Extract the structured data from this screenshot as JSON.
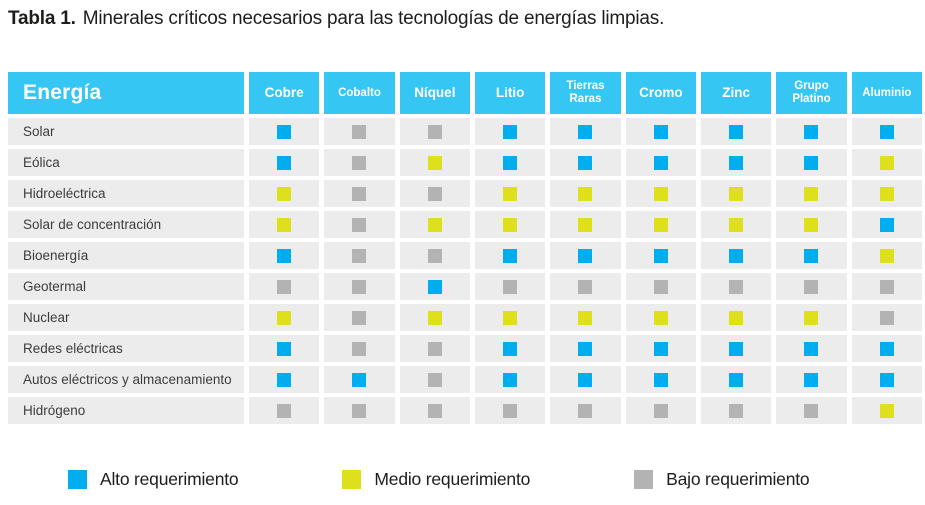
{
  "title": {
    "label": "Tabla 1.",
    "text": "Minerales críticos necesarios para las tecnologías de energías limpias."
  },
  "table": {
    "energy_header": "Energía",
    "mineral_headers": [
      "Cobre",
      "Cobalto",
      "Níquel",
      "Litio",
      "Tierras Raras",
      "Cromo",
      "Zinc",
      "Grupo Platino",
      "Aluminio"
    ],
    "rows": [
      {
        "energy": "Solar",
        "levels": [
          "alto",
          "bajo",
          "bajo",
          "alto",
          "alto",
          "alto",
          "alto",
          "alto",
          "alto"
        ]
      },
      {
        "energy": "Eólica",
        "levels": [
          "alto",
          "bajo",
          "medio",
          "alto",
          "alto",
          "alto",
          "alto",
          "alto",
          "medio"
        ]
      },
      {
        "energy": "Hidroeléctrica",
        "levels": [
          "medio",
          "bajo",
          "bajo",
          "medio",
          "medio",
          "medio",
          "medio",
          "medio",
          "medio"
        ]
      },
      {
        "energy": "Solar de concentración",
        "levels": [
          "medio",
          "bajo",
          "medio",
          "medio",
          "medio",
          "medio",
          "medio",
          "medio",
          "alto"
        ]
      },
      {
        "energy": "Bioenergía",
        "levels": [
          "alto",
          "bajo",
          "bajo",
          "alto",
          "alto",
          "alto",
          "alto",
          "alto",
          "medio"
        ]
      },
      {
        "energy": "Geotermal",
        "levels": [
          "bajo",
          "bajo",
          "alto",
          "bajo",
          "bajo",
          "bajo",
          "bajo",
          "bajo",
          "bajo"
        ]
      },
      {
        "energy": "Nuclear",
        "levels": [
          "medio",
          "bajo",
          "medio",
          "medio",
          "medio",
          "medio",
          "medio",
          "medio",
          "bajo"
        ]
      },
      {
        "energy": "Redes eléctricas",
        "levels": [
          "alto",
          "bajo",
          "bajo",
          "alto",
          "alto",
          "alto",
          "alto",
          "alto",
          "alto"
        ]
      },
      {
        "energy": "Autos eléctricos y almacenamiento",
        "levels": [
          "alto",
          "alto",
          "bajo",
          "alto",
          "alto",
          "alto",
          "alto",
          "alto",
          "alto"
        ]
      },
      {
        "energy": "Hidrógeno",
        "levels": [
          "bajo",
          "bajo",
          "bajo",
          "bajo",
          "bajo",
          "bajo",
          "bajo",
          "bajo",
          "medio"
        ]
      }
    ]
  },
  "legend": {
    "items": [
      {
        "level": "alto",
        "label": "Alto requerimiento"
      },
      {
        "level": "medio",
        "label": "Medio requerimiento"
      },
      {
        "level": "bajo",
        "label": "Bajo requerimiento"
      }
    ]
  },
  "colors": {
    "alto": "#00aeef",
    "medio": "#dde01a",
    "bajo": "#b3b3b3",
    "header_bg": "#35c6f3",
    "row_bg": "#ececec"
  }
}
